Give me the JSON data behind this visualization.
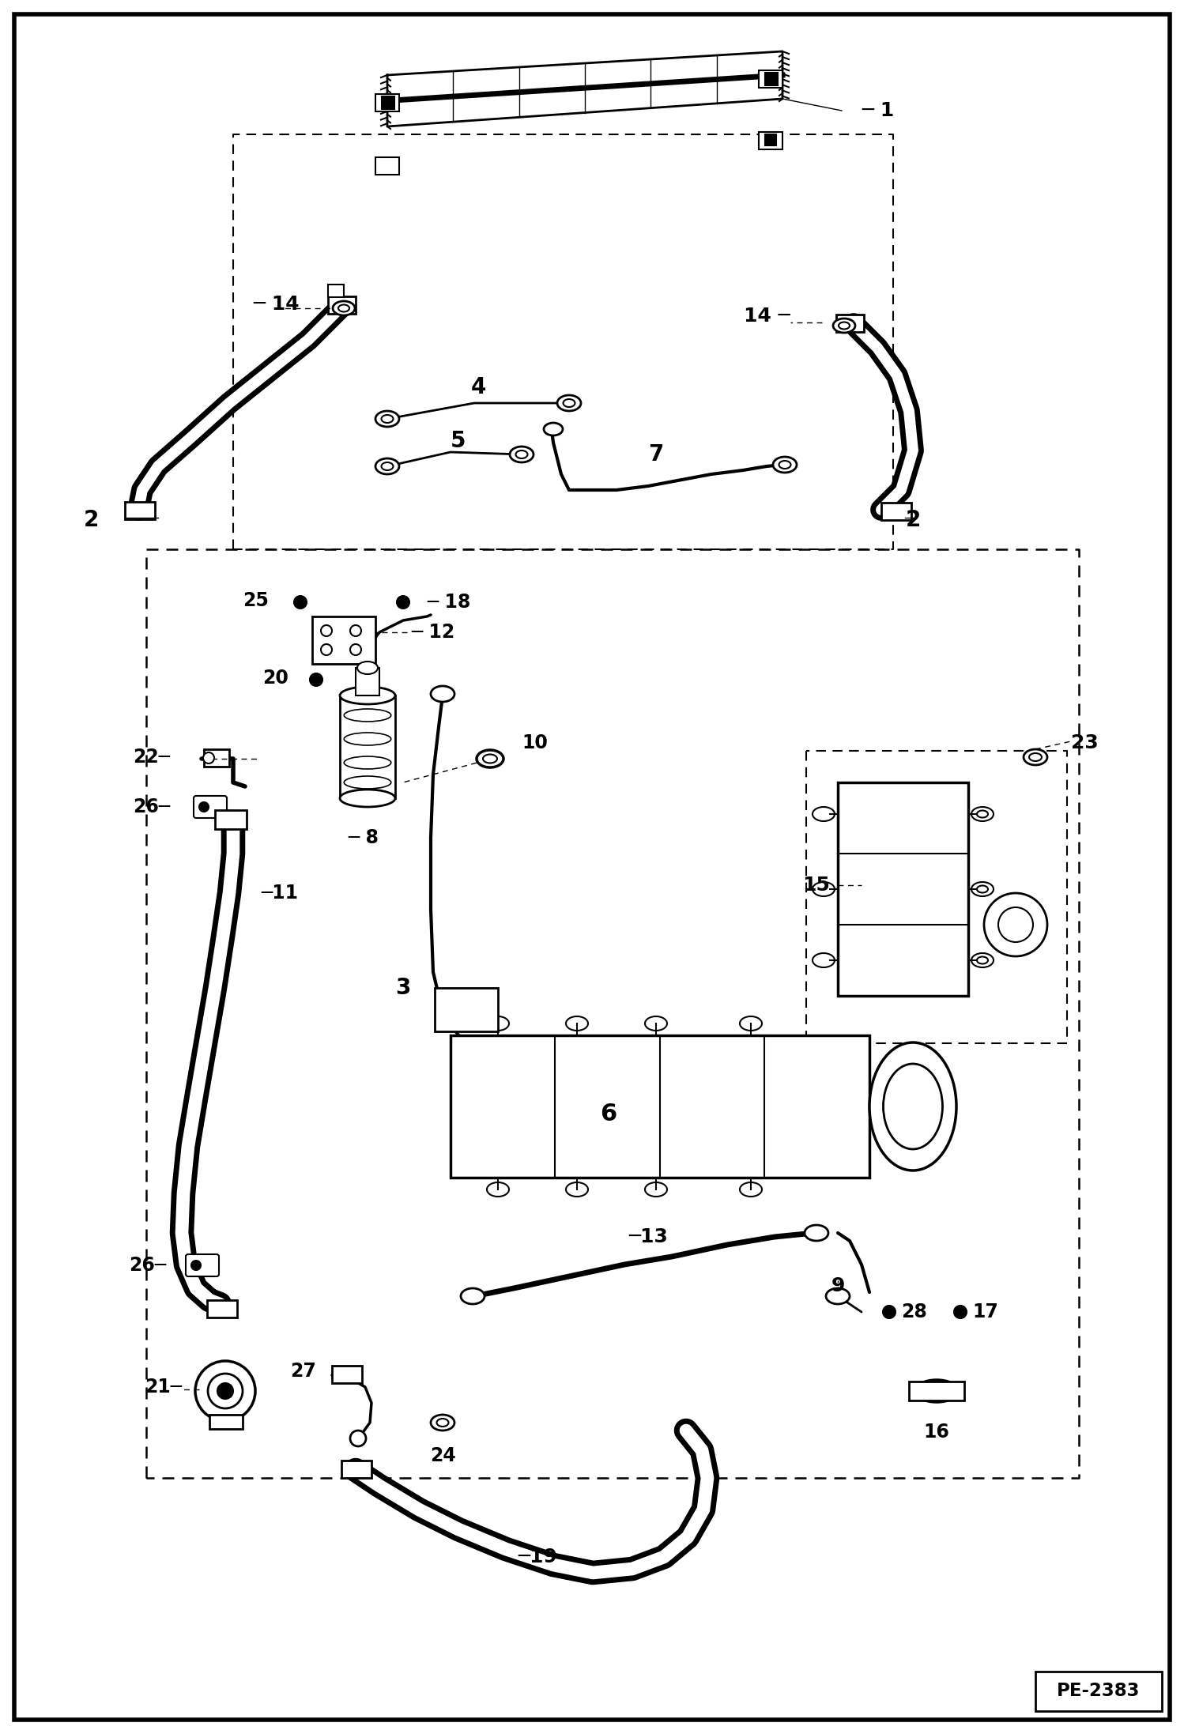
{
  "fig_width": 14.98,
  "fig_height": 21.94,
  "dpi": 100,
  "bg_color": "#ffffff",
  "border_color": "#000000",
  "border_lw": 4,
  "title": "PE-2383",
  "title_fontsize": 11
}
